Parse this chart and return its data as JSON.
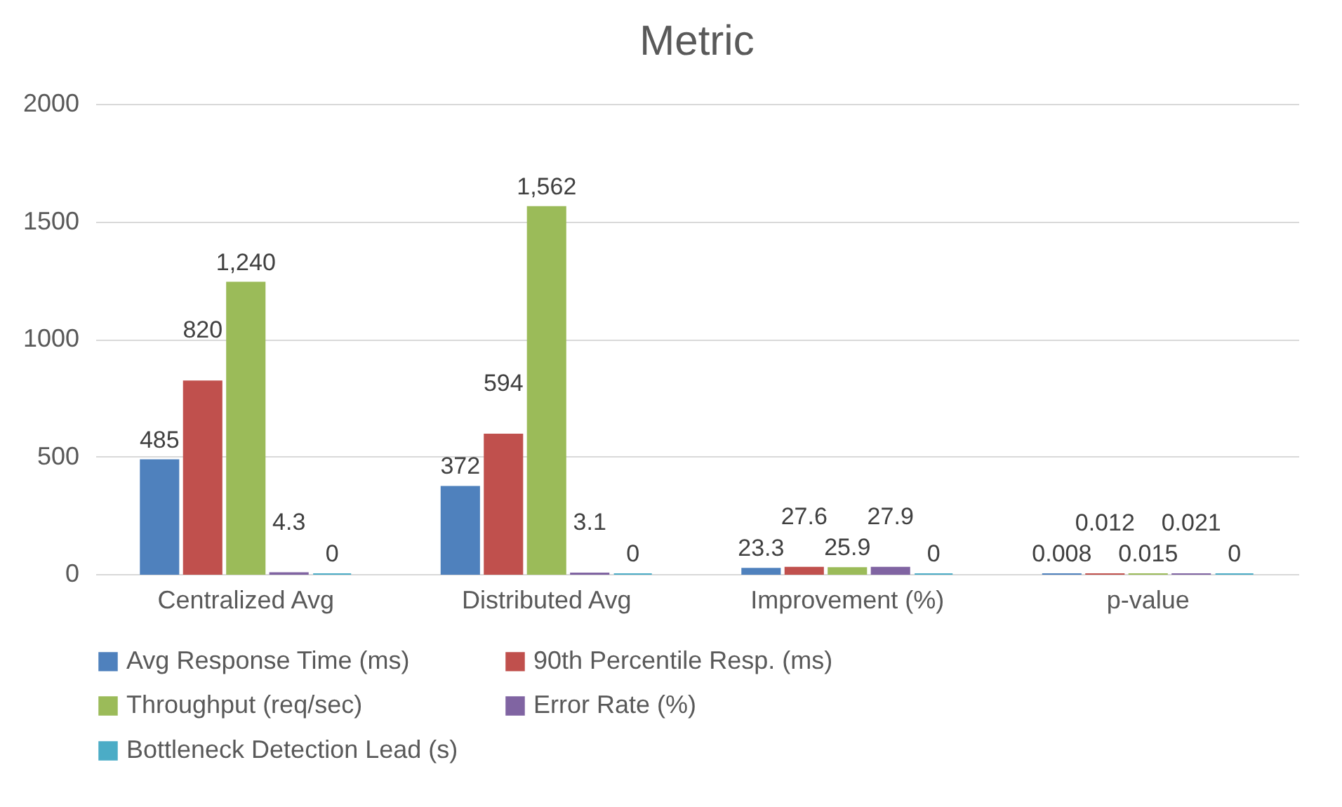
{
  "chart_data": {
    "type": "bar",
    "title": "Metric",
    "categories": [
      "Centralized Avg",
      "Distributed Avg",
      "Improvement (%)",
      "p-value"
    ],
    "series": [
      {
        "name": "Avg Response Time (ms)",
        "color": "#4f81bd",
        "values": [
          485,
          372,
          23.3,
          0.008
        ],
        "value_labels": [
          "485",
          "372",
          "23.3",
          "0.008"
        ]
      },
      {
        "name": "90th Percentile Resp. (ms)",
        "color": "#c0504d",
        "values": [
          820,
          594,
          27.6,
          0.012
        ],
        "value_labels": [
          "820",
          "594",
          "27.6",
          "0.012"
        ]
      },
      {
        "name": "Throughput (req/sec)",
        "color": "#9bbb59",
        "values": [
          1240,
          1562,
          25.9,
          0.015
        ],
        "value_labels": [
          "1,240",
          "1,562",
          "25.9",
          "0.015"
        ]
      },
      {
        "name": "Error Rate (%)",
        "color": "#8064a2",
        "values": [
          4.3,
          3.1,
          27.9,
          0.021
        ],
        "value_labels": [
          "4.3",
          "3.1",
          "27.9",
          "0.021"
        ]
      },
      {
        "name": "Bottleneck Detection Lead (s)",
        "color": "#4bacc6",
        "values": [
          0,
          0,
          0,
          0
        ],
        "value_labels": [
          "0",
          "0",
          "0",
          "0"
        ]
      }
    ],
    "ylim": [
      0,
      2000
    ],
    "yticks": [
      0,
      500,
      1000,
      1500,
      2000
    ],
    "grid": "y",
    "legend": "bottom"
  }
}
